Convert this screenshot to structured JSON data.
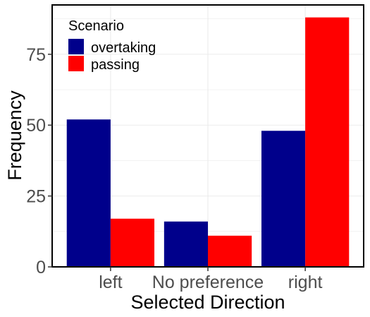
{
  "chart_data": {
    "type": "bar",
    "xlabel": "Selected Direction",
    "ylabel": "Frequency",
    "categories": [
      "left",
      "No preference",
      "right"
    ],
    "series": [
      {
        "name": "overtaking",
        "color": "#00008b",
        "values": [
          52,
          16,
          48
        ]
      },
      {
        "name": "passing",
        "color": "#ff0000",
        "values": [
          17,
          11,
          88
        ]
      }
    ],
    "ylim": [
      0,
      92.4
    ],
    "yticks": [
      0,
      25,
      50,
      75
    ],
    "grid": true,
    "legend": {
      "title": "Scenario",
      "placement": "top-left"
    }
  }
}
